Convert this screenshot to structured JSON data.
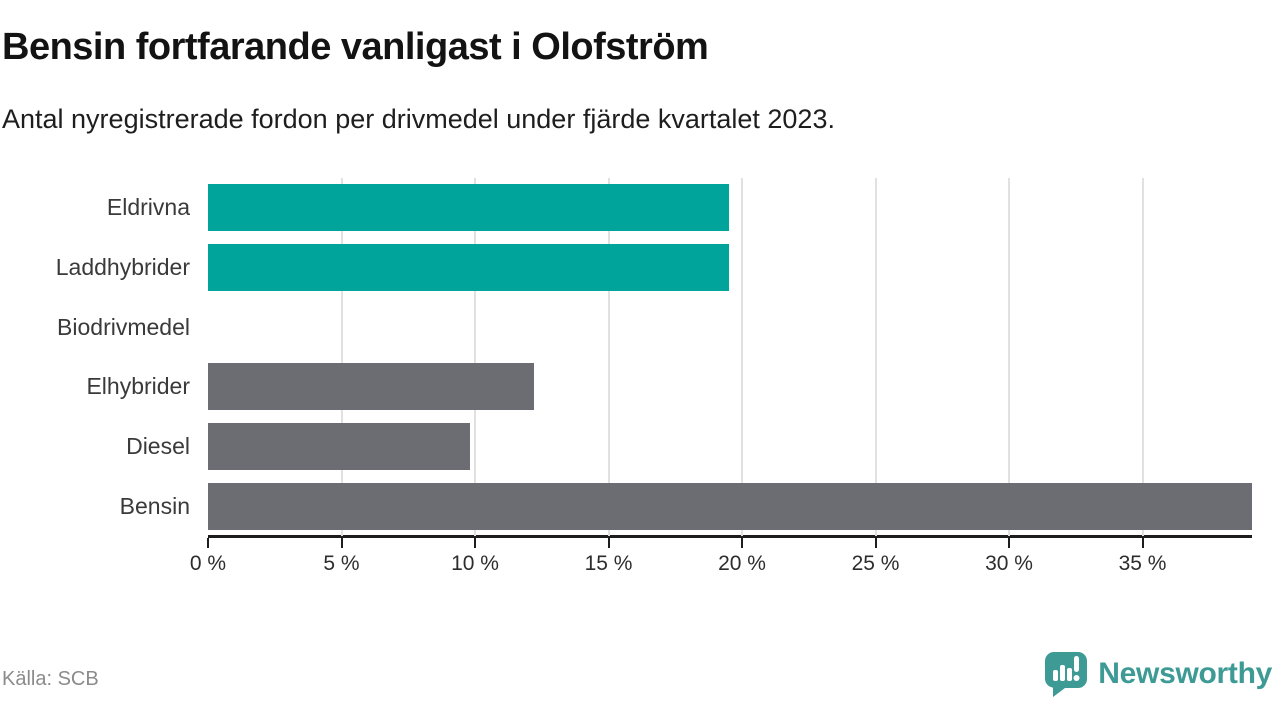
{
  "header": {
    "title": "Bensin fortfarande vanligast i Olofström",
    "subtitle": "Antal nyregistrerade fordon per drivmedel under fjärde kvartalet 2023."
  },
  "footer": {
    "source": "Källa: SCB",
    "brand": "Newsworthy"
  },
  "colors": {
    "highlight_teal": "#00a49b",
    "neutral_gray": "#6c6c73",
    "gridline": "#e1e1e1",
    "axis": "#1d1d1d",
    "brand_teal": "#3d9a94"
  },
  "icons": {
    "brand_logo": "speech-bubble-bar-chart-exclamation-icon"
  },
  "chart_data": {
    "type": "bar",
    "orientation": "horizontal",
    "title": "Bensin fortfarande vanligast i Olofström",
    "subtitle": "Antal nyregistrerade fordon per drivmedel under fjärde kvartalet 2023.",
    "categories": [
      "Eldrivna",
      "Laddhybrider",
      "Biodrivmedel",
      "Elhybrider",
      "Diesel",
      "Bensin"
    ],
    "values": [
      19.5,
      19.5,
      0,
      12.2,
      9.8,
      39.1
    ],
    "unit": "%",
    "bar_colors": [
      "#00a49b",
      "#00a49b",
      "#6c6c73",
      "#6c6c73",
      "#6c6c73",
      "#6c6c73"
    ],
    "x_ticks": [
      {
        "value": 0,
        "label": "0 %"
      },
      {
        "value": 5,
        "label": "5 %"
      },
      {
        "value": 10,
        "label": "10 %"
      },
      {
        "value": 15,
        "label": "15 %"
      },
      {
        "value": 20,
        "label": "20 %"
      },
      {
        "value": 25,
        "label": "25 %"
      },
      {
        "value": 30,
        "label": "30 %"
      },
      {
        "value": 35,
        "label": "35 %"
      }
    ],
    "xlim": [
      0,
      39.1
    ],
    "grid": "vertical",
    "legend": "none",
    "source": "Källa: SCB"
  }
}
